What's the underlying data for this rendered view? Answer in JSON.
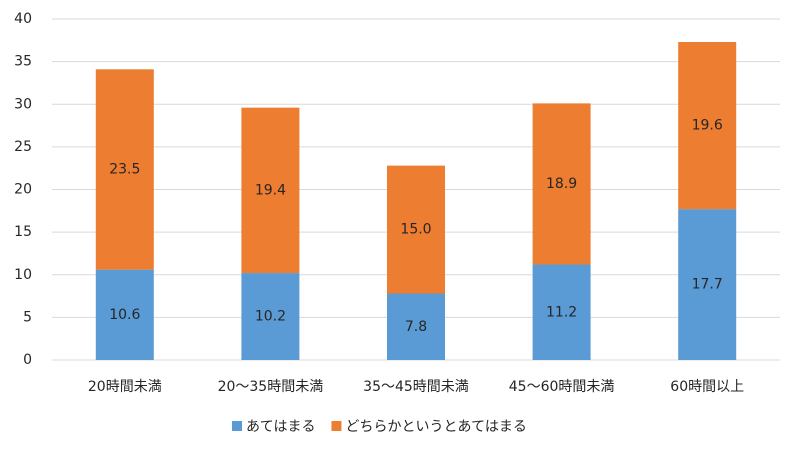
{
  "chart_data": {
    "type": "stacked_bar",
    "categories": [
      "20時間未満",
      "20～35時間未満",
      "35～45時間未満",
      "45～60時間未満",
      "60時間以上"
    ],
    "series": [
      {
        "name": "あてはまる",
        "color": "#5b9bd5",
        "values": [
          10.6,
          10.2,
          7.8,
          11.2,
          17.7
        ]
      },
      {
        "name": "どちらかというとあてはまる",
        "color": "#ed7d31",
        "values": [
          23.5,
          19.4,
          15.0,
          18.9,
          19.6
        ],
        "value_labels": [
          "23.5",
          "19.4",
          "15.0",
          "18.9",
          "19.6"
        ]
      }
    ],
    "ylim": [
      0,
      40
    ],
    "yticks": [
      0,
      5,
      10,
      15,
      20,
      25,
      30,
      35,
      40
    ],
    "grid": true,
    "legend": "bottom"
  }
}
